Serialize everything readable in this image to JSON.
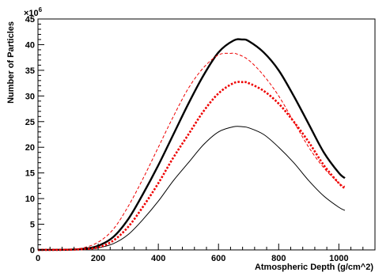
{
  "chart_data": {
    "type": "line",
    "title": "",
    "xlabel": "Atmospheric Depth (g/cm^2)",
    "ylabel": "Number of Particles",
    "y_multiplier_label": "×10",
    "y_multiplier_exponent": "6",
    "xlim": [
      0,
      1120
    ],
    "ylim": [
      0,
      45
    ],
    "x_ticks": [
      0,
      200,
      400,
      600,
      800,
      1000
    ],
    "y_ticks": [
      0,
      5,
      10,
      15,
      20,
      25,
      30,
      35,
      40,
      45
    ],
    "grid": false,
    "legend": false,
    "series": [
      {
        "color": "#000000",
        "line_style": "solid",
        "line_weight": "thick",
        "x": [
          0,
          100,
          150,
          200,
          250,
          300,
          350,
          400,
          450,
          500,
          550,
          600,
          650,
          680,
          700,
          750,
          800,
          850,
          900,
          950,
          1000,
          1020
        ],
        "y": [
          0,
          0.05,
          0.2,
          0.8,
          2.5,
          6,
          11,
          16.5,
          22.5,
          28.5,
          34,
          38.5,
          40.8,
          41,
          40.7,
          38.5,
          35,
          30,
          24.5,
          19,
          15,
          14
        ]
      },
      {
        "color": "#000000",
        "line_style": "solid",
        "line_weight": "thin",
        "x": [
          0,
          100,
          150,
          200,
          250,
          300,
          350,
          400,
          450,
          500,
          550,
          600,
          650,
          680,
          700,
          750,
          800,
          850,
          900,
          950,
          1000,
          1020
        ],
        "y": [
          0,
          0.02,
          0.1,
          0.4,
          1.2,
          3,
          6,
          9.5,
          13.5,
          17,
          20.5,
          23,
          24,
          24,
          23.8,
          22.5,
          20,
          17,
          13.5,
          10.5,
          8.3,
          7.7
        ]
      },
      {
        "color": "#ee0000",
        "line_style": "dotted",
        "line_weight": "thick",
        "x": [
          0,
          100,
          150,
          200,
          250,
          300,
          350,
          400,
          450,
          500,
          550,
          600,
          650,
          680,
          700,
          750,
          800,
          850,
          900,
          950,
          1000,
          1020
        ],
        "y": [
          0,
          0.03,
          0.15,
          0.5,
          1.8,
          4.5,
          8.5,
          13,
          18,
          22.5,
          27,
          30.5,
          32.5,
          32.7,
          32.5,
          31,
          28.5,
          25,
          21,
          16.5,
          13,
          12
        ]
      },
      {
        "color": "#ee0000",
        "line_style": "dashed",
        "line_weight": "thin",
        "x": [
          0,
          100,
          150,
          200,
          250,
          300,
          350,
          400,
          450,
          500,
          550,
          600,
          640,
          660,
          700,
          750,
          800,
          850,
          900,
          950,
          1000,
          1020
        ],
        "y": [
          0,
          0.1,
          0.4,
          1.5,
          4,
          8.5,
          14,
          20,
          26,
          31.5,
          35.5,
          38,
          38.3,
          38.2,
          37,
          34,
          30,
          25,
          20,
          16,
          13,
          12.4
        ]
      }
    ]
  }
}
